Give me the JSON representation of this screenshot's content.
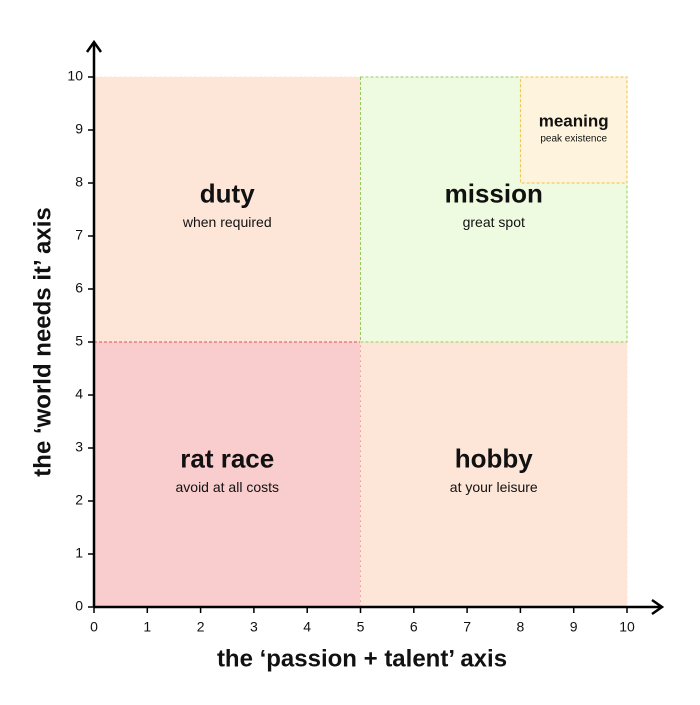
{
  "chart_data": {
    "type": "quadrant",
    "x_label": "the ‘passion + talent’ axis",
    "y_label": "the ‘world needs it’ axis",
    "xlim": [
      0,
      10
    ],
    "ylim": [
      0,
      10
    ],
    "xticks": [
      0,
      1,
      2,
      3,
      4,
      5,
      6,
      7,
      8,
      9,
      10
    ],
    "yticks": [
      0,
      1,
      2,
      3,
      4,
      5,
      6,
      7,
      8,
      9,
      10
    ],
    "regions": [
      {
        "name": "duty",
        "label": "when required",
        "x": [
          0,
          5
        ],
        "y": [
          5,
          10
        ],
        "color": "#fde6d8",
        "border": "#fde6d8"
      },
      {
        "name": "rat race",
        "label": "avoid at all costs",
        "x": [
          0,
          5
        ],
        "y": [
          0,
          5
        ],
        "color": "#f9cdcd",
        "border": "#d9534f"
      },
      {
        "name": "hobby",
        "label": "at your leisure",
        "x": [
          5,
          10
        ],
        "y": [
          0,
          5
        ],
        "color": "#fde6d8",
        "border": "#fde6d8"
      },
      {
        "name": "mission",
        "label": "great spot",
        "x": [
          5,
          10
        ],
        "y": [
          5,
          10
        ],
        "color": "#eefbe0",
        "border": "#8fcf5a"
      },
      {
        "name": "meaning",
        "label": "peak existence",
        "x": [
          8,
          10
        ],
        "y": [
          8,
          10
        ],
        "color": "#fef4dd",
        "border": "#f0c040"
      }
    ]
  }
}
